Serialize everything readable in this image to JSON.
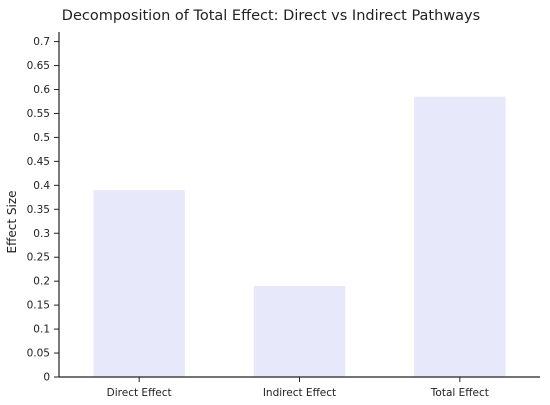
{
  "chart_data": {
    "type": "bar",
    "title": "Decomposition of Total Effect: Direct vs Indirect Pathways",
    "xlabel": "",
    "ylabel": "Effect Size",
    "categories": [
      "Direct Effect",
      "Indirect Effect",
      "Total Effect"
    ],
    "values": [
      0.39,
      0.19,
      0.585
    ],
    "ylim": [
      0,
      0.72
    ],
    "yticks": [
      0,
      0.05,
      0.1,
      0.15,
      0.2,
      0.25,
      0.3,
      0.35,
      0.4,
      0.45,
      0.5,
      0.55,
      0.6,
      0.65,
      0.7
    ],
    "ytick_labels": [
      "0",
      "0.05",
      "0.1",
      "0.15",
      "0.2",
      "0.25",
      "0.3",
      "0.35",
      "0.4",
      "0.45",
      "0.5",
      "0.55",
      "0.6",
      "0.65",
      "0.7"
    ],
    "grid": false,
    "bar_color": "#e8e8fb"
  }
}
